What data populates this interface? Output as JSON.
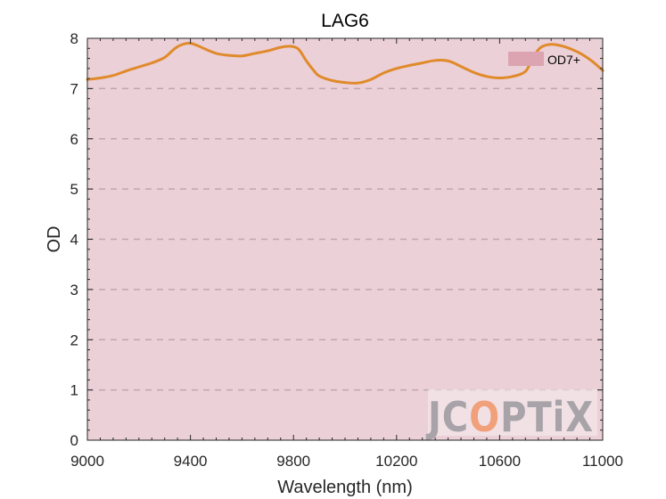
{
  "chart_data": {
    "type": "line",
    "title": "LAG6",
    "xlabel": "Wavelength (nm)",
    "ylabel": "OD",
    "xlim": [
      9000,
      11000
    ],
    "ylim": [
      0,
      8
    ],
    "xticks": [
      9000,
      9400,
      9800,
      10200,
      10600,
      11000
    ],
    "yticks": [
      0,
      1,
      2,
      3,
      4,
      5,
      6,
      7,
      8
    ],
    "grid": "horizontal-dashed",
    "band": {
      "label": "OD7+",
      "from": 0,
      "to": 8,
      "color": "#ebd0d8"
    },
    "legend": {
      "position": "top-right",
      "entries": [
        "OD7+"
      ]
    },
    "series": [
      {
        "color": "#e08a2a",
        "x": [
          9000,
          9050,
          9100,
          9150,
          9200,
          9250,
          9300,
          9340,
          9370,
          9400,
          9430,
          9460,
          9500,
          9550,
          9600,
          9650,
          9700,
          9750,
          9790,
          9820,
          9850,
          9880,
          9900,
          9950,
          10000,
          10050,
          10100,
          10150,
          10200,
          10250,
          10300,
          10350,
          10400,
          10450,
          10500,
          10550,
          10600,
          10650,
          10700,
          10730,
          10760,
          10800,
          10840,
          10880,
          10920,
          10960,
          11000
        ],
        "values": [
          7.18,
          7.21,
          7.26,
          7.35,
          7.43,
          7.51,
          7.62,
          7.8,
          7.88,
          7.9,
          7.85,
          7.78,
          7.7,
          7.66,
          7.65,
          7.7,
          7.75,
          7.82,
          7.84,
          7.78,
          7.55,
          7.35,
          7.25,
          7.16,
          7.12,
          7.11,
          7.18,
          7.31,
          7.4,
          7.46,
          7.51,
          7.56,
          7.55,
          7.44,
          7.32,
          7.24,
          7.21,
          7.24,
          7.34,
          7.62,
          7.82,
          7.88,
          7.85,
          7.78,
          7.68,
          7.54,
          7.36
        ]
      }
    ]
  },
  "watermark": {
    "text": "JCOPTIX",
    "letters": [
      "J",
      "C",
      "O",
      "P",
      "T",
      "i",
      "X"
    ],
    "colors": [
      "#a8a3a8",
      "#a8a3a8",
      "#f0a07a",
      "#a8a3a8",
      "#a8a3a8",
      "#a8a3a8",
      "#a8a3a8"
    ]
  }
}
